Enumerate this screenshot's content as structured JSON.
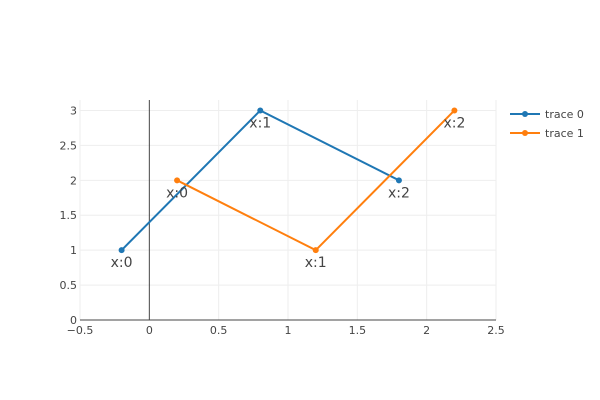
{
  "chart_data": {
    "type": "line",
    "xlim": [
      -0.5,
      2.5
    ],
    "ylim": [
      0,
      3.15
    ],
    "x_ticks": [
      -0.5,
      0,
      0.5,
      1,
      1.5,
      2,
      2.5
    ],
    "x_tick_labels": [
      "−0.5",
      "0",
      "0.5",
      "1",
      "1.5",
      "2",
      "2.5"
    ],
    "y_ticks": [
      0,
      0.5,
      1,
      1.5,
      2,
      2.5,
      3
    ],
    "y_tick_labels": [
      "0",
      "0.5",
      "1",
      "1.5",
      "2",
      "2.5",
      "3"
    ],
    "grid": true,
    "legend_position": "top-right",
    "series": [
      {
        "name": "trace 0",
        "color": "#1f77b4",
        "x": [
          -0.2,
          0.8,
          1.8
        ],
        "y": [
          1,
          3,
          2
        ],
        "labels": [
          "x:0",
          "x:1",
          "x:2"
        ]
      },
      {
        "name": "trace 1",
        "color": "#ff7f0e",
        "x": [
          0.2,
          1.2,
          2.2
        ],
        "y": [
          2,
          1,
          3
        ],
        "labels": [
          "x:0",
          "x:1",
          "x:2"
        ]
      }
    ]
  }
}
